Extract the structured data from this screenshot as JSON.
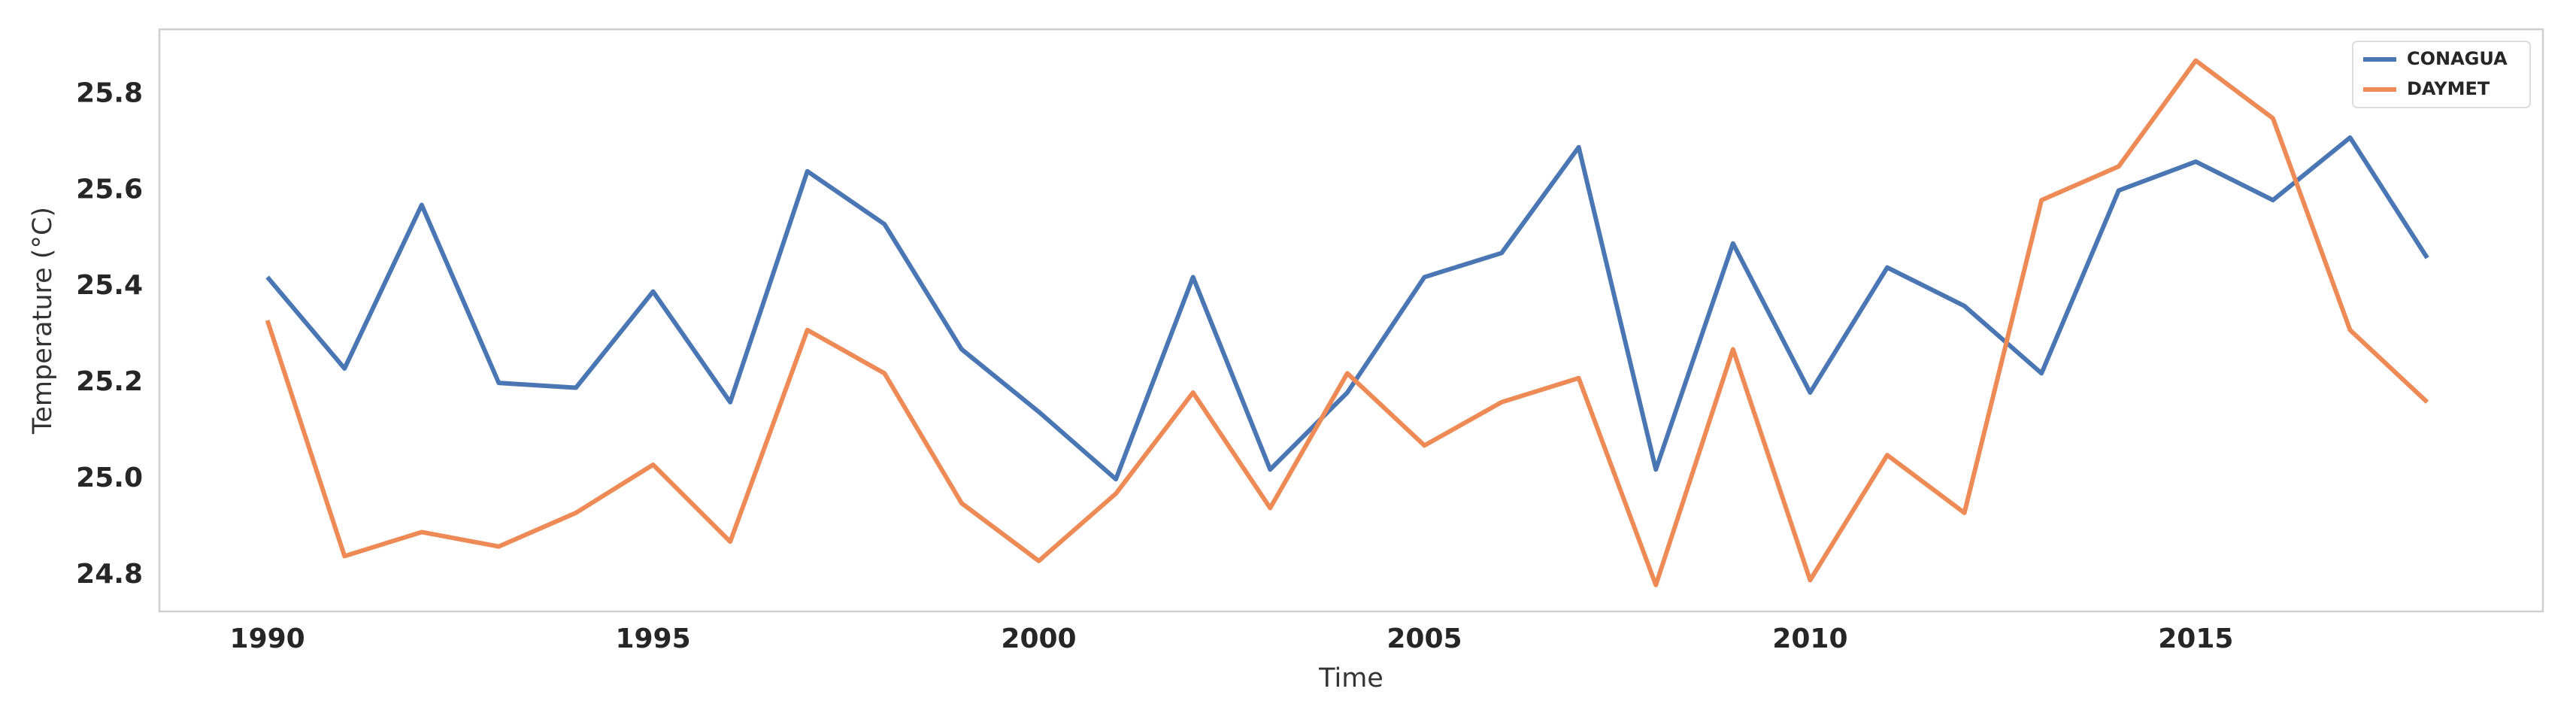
{
  "chart_data": {
    "type": "line",
    "x_label": "Time",
    "y_label": "Temperature (°C)",
    "x": [
      1990,
      1991,
      1992,
      1993,
      1994,
      1995,
      1996,
      1997,
      1998,
      1999,
      2000,
      2001,
      2002,
      2003,
      2004,
      2005,
      2006,
      2007,
      2008,
      2009,
      2010,
      2011,
      2012,
      2013,
      2014,
      2015,
      2016,
      2017,
      2018
    ],
    "series": [
      {
        "name": "CONAGUA",
        "color": "#4a77b4",
        "values": [
          25.42,
          25.23,
          25.57,
          25.2,
          25.19,
          25.39,
          25.16,
          25.64,
          25.53,
          25.27,
          25.14,
          25.0,
          25.42,
          25.02,
          25.18,
          25.42,
          25.47,
          25.69,
          25.02,
          25.49,
          25.18,
          25.44,
          25.36,
          25.22,
          25.6,
          25.66,
          25.58,
          25.71,
          25.46
        ]
      },
      {
        "name": "DAYMET",
        "color": "#ed8a55",
        "values": [
          25.33,
          24.84,
          24.89,
          24.86,
          24.93,
          25.03,
          24.87,
          25.31,
          25.22,
          24.95,
          24.83,
          24.97,
          25.18,
          24.94,
          25.22,
          25.07,
          25.16,
          25.21,
          24.78,
          25.27,
          24.79,
          25.05,
          24.93,
          25.58,
          25.65,
          25.87,
          25.75,
          25.31,
          25.16
        ]
      }
    ],
    "xlim": [
      1988.6,
      2019.5
    ],
    "xticks": [
      1990,
      1995,
      2000,
      2005,
      2010,
      2015
    ],
    "ylim": [
      24.725,
      25.935
    ],
    "yticks": [
      24.8,
      {
        "value": 25.0,
        "label": "25.0"
      },
      25.2,
      25.4,
      25.6,
      25.8
    ],
    "grid": false,
    "legend": "upper right"
  }
}
